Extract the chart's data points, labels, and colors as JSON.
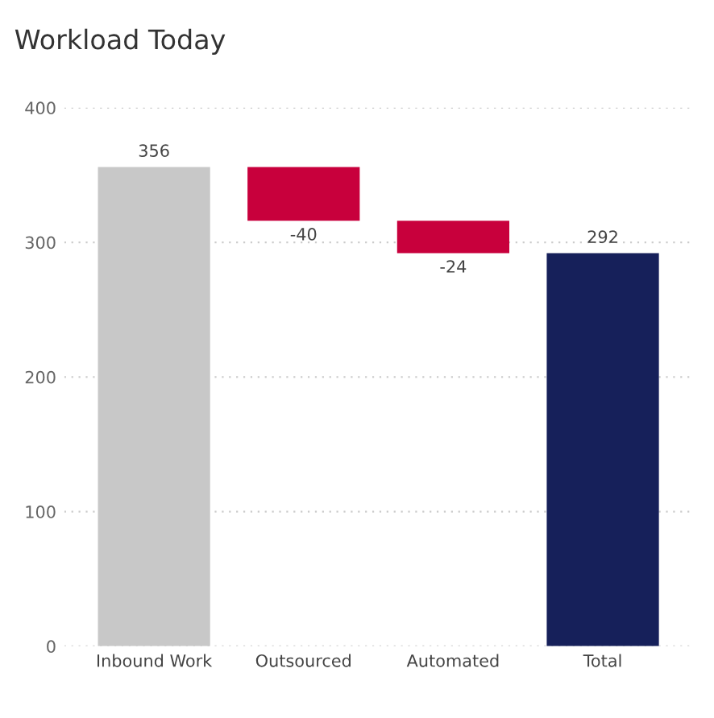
{
  "chart_data": {
    "type": "bar",
    "title": "Workload Today",
    "categories": [
      "Inbound Work",
      "Outsourced",
      "Automated",
      "Total"
    ],
    "values": [
      356,
      -40,
      -24,
      292
    ],
    "base": [
      0,
      356,
      316,
      0
    ],
    "colors": [
      "#c8c8c8",
      "#c8003c",
      "#c8003c",
      "#16205a"
    ],
    "value_labels": [
      "356",
      "-40",
      "-24",
      "292"
    ],
    "ylim": [
      0,
      400
    ],
    "yticks": [
      0,
      100,
      200,
      300,
      400
    ],
    "grid": "y"
  }
}
